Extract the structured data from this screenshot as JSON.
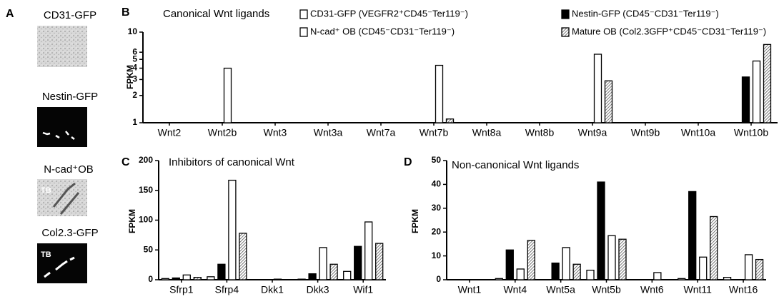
{
  "panel_a": {
    "label": "A",
    "images": [
      {
        "caption": "CD31-GFP"
      },
      {
        "caption": "Nestin-GFP"
      },
      {
        "caption": "N-cad⁺OB",
        "inset": "TB"
      },
      {
        "caption": "Col2.3-GFP",
        "inset": "TB"
      }
    ]
  },
  "chart_data": [
    {
      "type": "bar",
      "panel_label": "B",
      "title": "Canonical Wnt ligands",
      "y_label": "FPKM",
      "log_scale": true,
      "ylim": [
        1,
        10
      ],
      "yticks": [
        1,
        2,
        3,
        4,
        5,
        6,
        10
      ],
      "categories": [
        "Wnt2",
        "Wnt2b",
        "Wnt3",
        "Wnt3a",
        "Wnt7a",
        "Wnt7b",
        "Wnt8a",
        "Wnt8b",
        "Wnt9a",
        "Wnt9b",
        "Wnt10a",
        "Wnt10b"
      ],
      "series": [
        {
          "name": "CD31-GFP (VEGFR2⁺CD45⁻Ter119⁻)",
          "color": "#ffffff",
          "values": [
            1,
            1,
            1,
            1,
            1,
            1,
            1,
            1,
            1,
            1,
            1,
            1
          ]
        },
        {
          "name": "Nestin-GFP (CD45⁻CD31⁻Ter119⁻)",
          "color": "#000000",
          "values": [
            1,
            1,
            1,
            1,
            1,
            1,
            1,
            1,
            1,
            1,
            1,
            3.2
          ]
        },
        {
          "name": "N-cad⁺ OB (CD45⁻CD31⁻Ter119⁻)",
          "color": "#ffffff",
          "values": [
            1,
            4.0,
            1,
            1,
            1,
            4.3,
            1,
            1,
            5.7,
            1,
            1,
            4.8
          ]
        },
        {
          "name": "Mature OB (Col2.3GFP⁺CD45⁻CD31⁻Ter119⁻)",
          "color": "#b0b0b0",
          "hatch": true,
          "values": [
            1,
            1,
            1,
            1,
            1,
            1.1,
            1,
            1,
            2.9,
            1,
            1,
            7.3
          ]
        }
      ]
    },
    {
      "type": "bar",
      "panel_label": "C",
      "title": "Inhibitors of canonical Wnt",
      "y_label": "FPKM",
      "ylim": [
        0,
        200
      ],
      "yticks": [
        0,
        50,
        100,
        150,
        200
      ],
      "categories": [
        "Sfrp1",
        "Sfrp4",
        "Dkk1",
        "Dkk3",
        "Wif1"
      ],
      "series": [
        {
          "color": "#ffffff",
          "values": [
            2,
            5,
            0,
            1,
            14
          ]
        },
        {
          "color": "#000000",
          "values": [
            3,
            26,
            0,
            10,
            56
          ]
        },
        {
          "color": "#ffffff",
          "values": [
            8,
            167,
            1,
            54,
            97
          ]
        },
        {
          "color": "#b0b0b0",
          "hatch": true,
          "values": [
            4,
            78,
            0,
            26,
            61
          ]
        }
      ]
    },
    {
      "type": "bar",
      "panel_label": "D",
      "title": "Non-canonical Wnt ligands",
      "y_label": "FPKM",
      "ylim": [
        0,
        50
      ],
      "yticks": [
        0,
        10,
        20,
        30,
        40,
        50
      ],
      "categories": [
        "Wnt1",
        "Wnt4",
        "Wnt5a",
        "Wnt5b",
        "Wnt6",
        "Wnt11",
        "Wnt16"
      ],
      "series": [
        {
          "color": "#ffffff",
          "values": [
            0,
            0.5,
            0,
            4,
            0,
            0.5,
            1
          ]
        },
        {
          "color": "#000000",
          "values": [
            0,
            12.5,
            7,
            41,
            0,
            37,
            0
          ]
        },
        {
          "color": "#ffffff",
          "values": [
            0,
            4.5,
            13.5,
            18.5,
            3,
            9.5,
            10.5
          ]
        },
        {
          "color": "#b0b0b0",
          "hatch": true,
          "values": [
            0,
            16.5,
            6.5,
            17,
            0,
            26.5,
            8.5
          ]
        }
      ]
    }
  ]
}
